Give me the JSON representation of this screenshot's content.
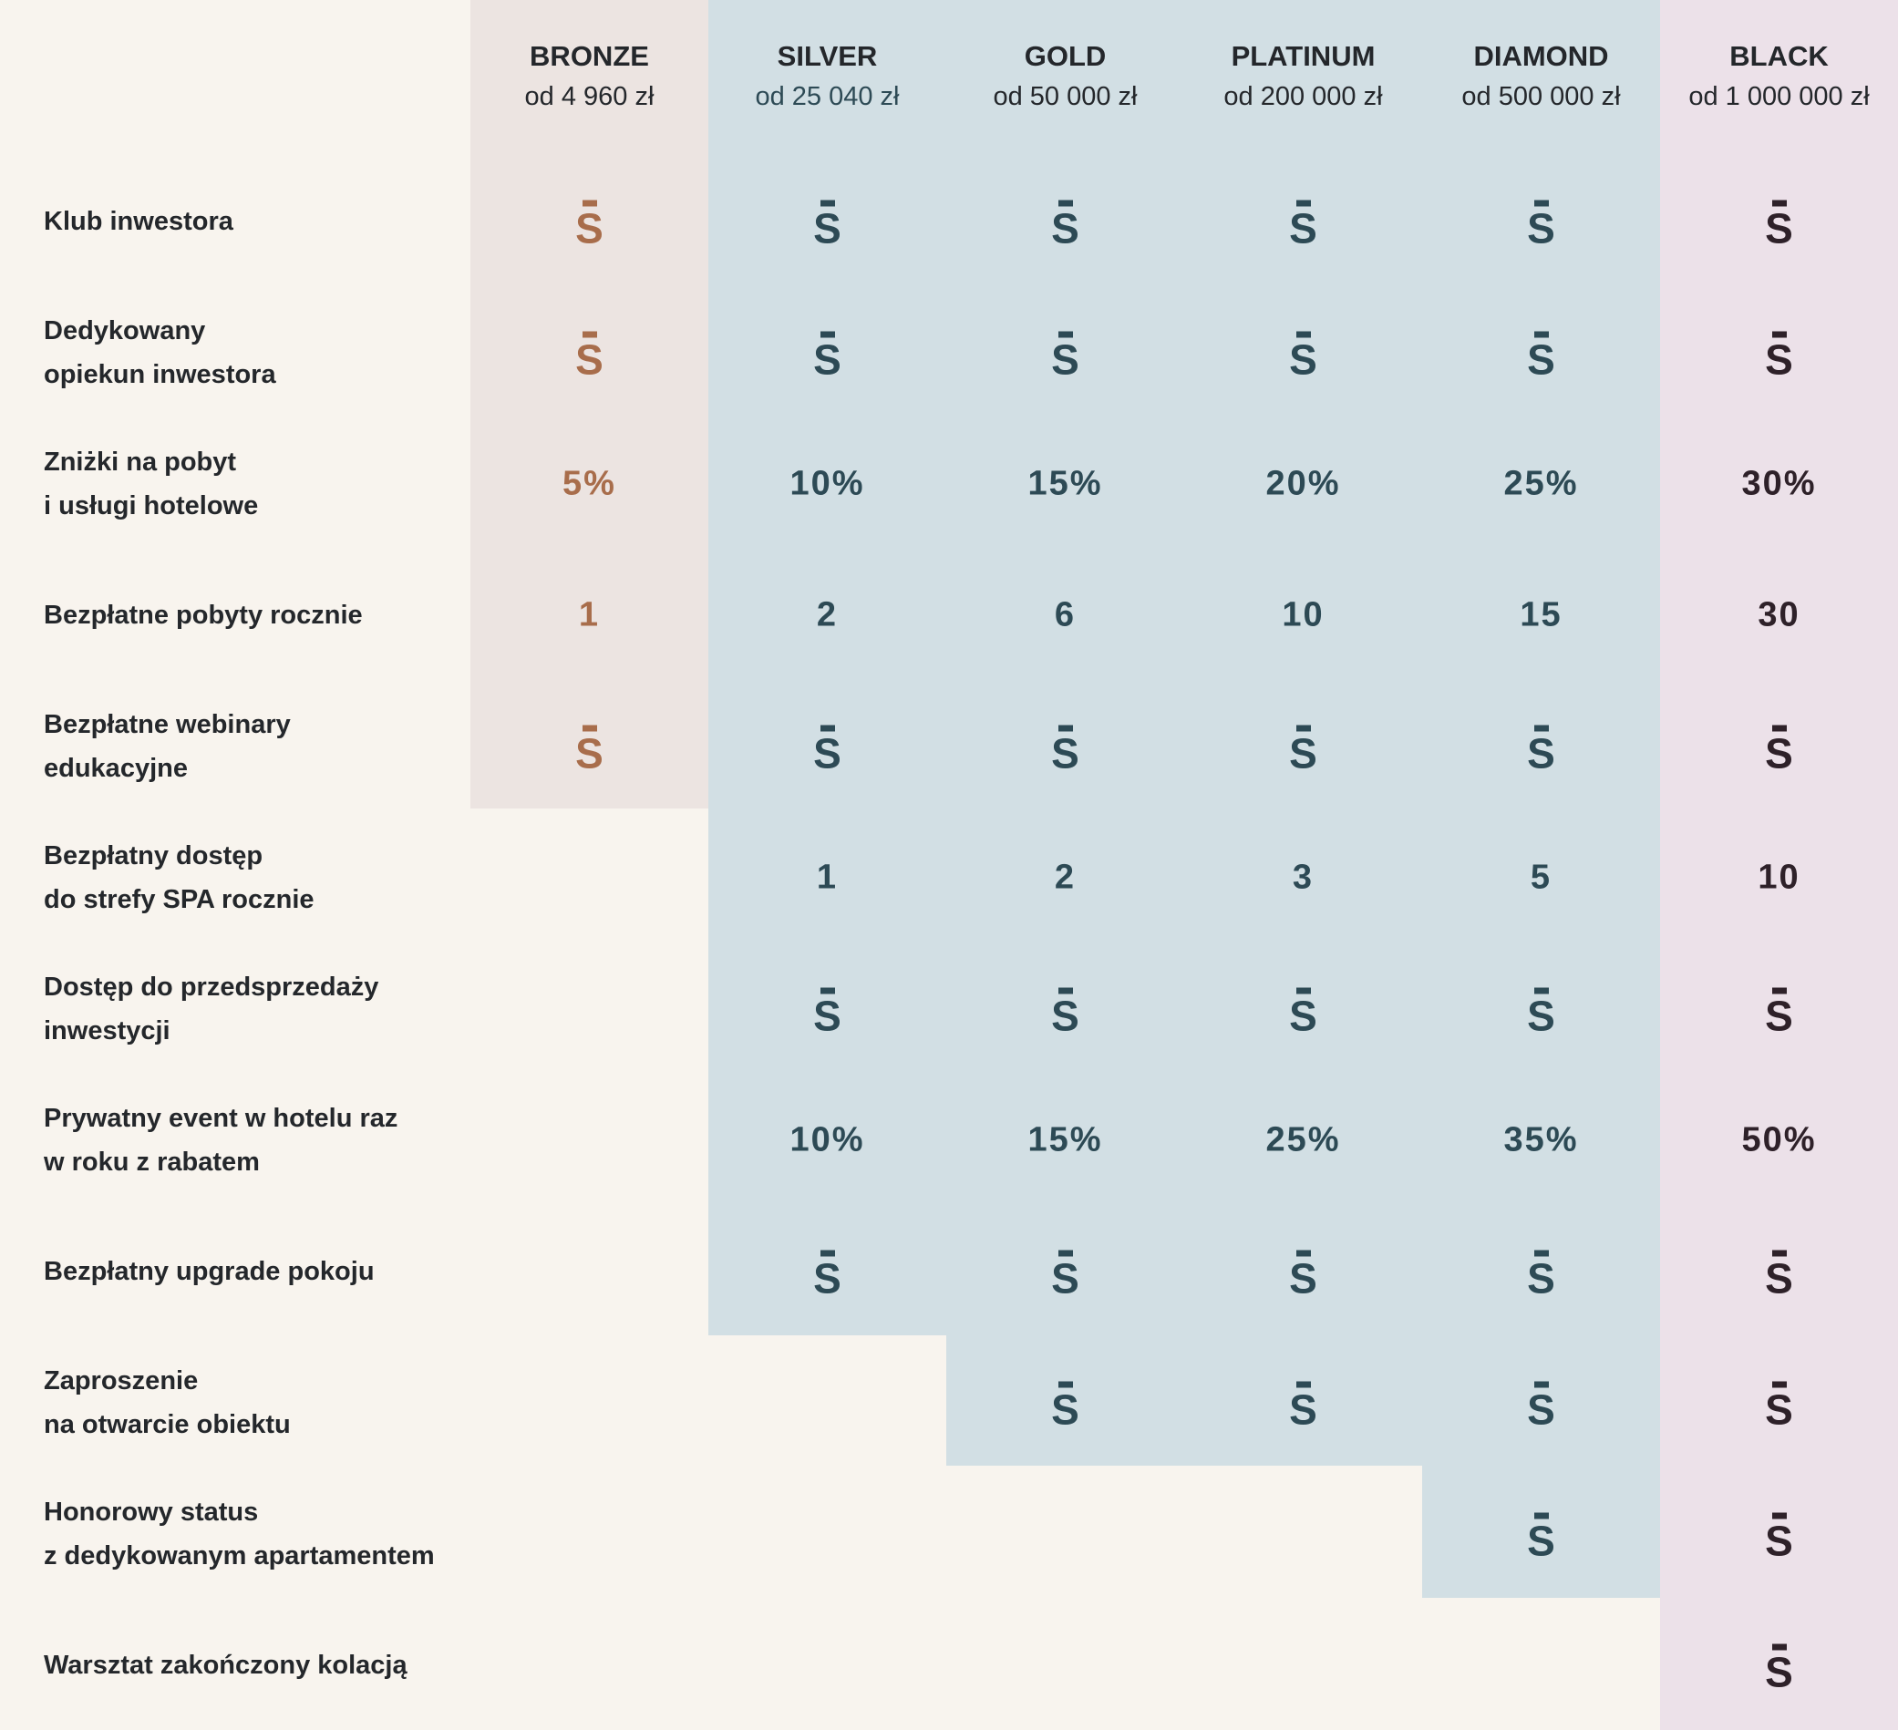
{
  "colors": {
    "background": "#f8f4ee",
    "bronze_bg": "#ece4e1",
    "blue_bg": "#d2dfe4",
    "black_bg": "#ece1e9",
    "bronze_text": "#a86d4b",
    "blue_text": "#2d4a55",
    "black_text": "#2e2129"
  },
  "icon": "s-overbar-check-icon",
  "tiers": [
    {
      "name": "BRONZE",
      "price": "od 4 960 zł"
    },
    {
      "name": "SILVER",
      "price": "od 25 040 zł"
    },
    {
      "name": "GOLD",
      "price": "od 50 000 zł"
    },
    {
      "name": "PLATINUM",
      "price": "od 200 000 zł"
    },
    {
      "name": "DIAMOND",
      "price": "od 500 000 zł"
    },
    {
      "name": "BLACK",
      "price": "od 1 000 000 zł"
    }
  ],
  "rows": [
    {
      "label": "Klub inwestora",
      "values": [
        "icon",
        "icon",
        "icon",
        "icon",
        "icon",
        "icon"
      ]
    },
    {
      "label": "Dedykowany\nopiekun inwestora",
      "values": [
        "icon",
        "icon",
        "icon",
        "icon",
        "icon",
        "icon"
      ]
    },
    {
      "label": "Zniżki na pobyt\ni usługi hotelowe",
      "values": [
        "5%",
        "10%",
        "15%",
        "20%",
        "25%",
        "30%"
      ]
    },
    {
      "label": "Bezpłatne pobyty rocznie",
      "values": [
        "1",
        "2",
        "6",
        "10",
        "15",
        "30"
      ]
    },
    {
      "label": "Bezpłatne webinary\nedukacyjne",
      "values": [
        "icon",
        "icon",
        "icon",
        "icon",
        "icon",
        "icon"
      ]
    },
    {
      "label": "Bezpłatny dostęp\ndo strefy SPA rocznie",
      "values": [
        null,
        "1",
        "2",
        "3",
        "5",
        "10"
      ]
    },
    {
      "label": "Dostęp do przedsprzedaży\ninwestycji",
      "values": [
        null,
        "icon",
        "icon",
        "icon",
        "icon",
        "icon"
      ]
    },
    {
      "label": "Prywatny event w hotelu raz\nw roku z rabatem",
      "values": [
        null,
        "10%",
        "15%",
        "25%",
        "35%",
        "50%"
      ]
    },
    {
      "label": "Bezpłatny upgrade pokoju",
      "values": [
        null,
        "icon",
        "icon",
        "icon",
        "icon",
        "icon"
      ]
    },
    {
      "label": "Zaproszenie\nna otwarcie obiektu",
      "values": [
        null,
        null,
        "icon",
        "icon",
        "icon",
        "icon"
      ]
    },
    {
      "label": "Honorowy status\nz dedykowanym apartamentem",
      "values": [
        null,
        null,
        null,
        null,
        "icon",
        "icon"
      ]
    },
    {
      "label": "Warsztat  zakończony kolacją",
      "values": [
        null,
        null,
        null,
        null,
        null,
        "icon"
      ]
    }
  ]
}
